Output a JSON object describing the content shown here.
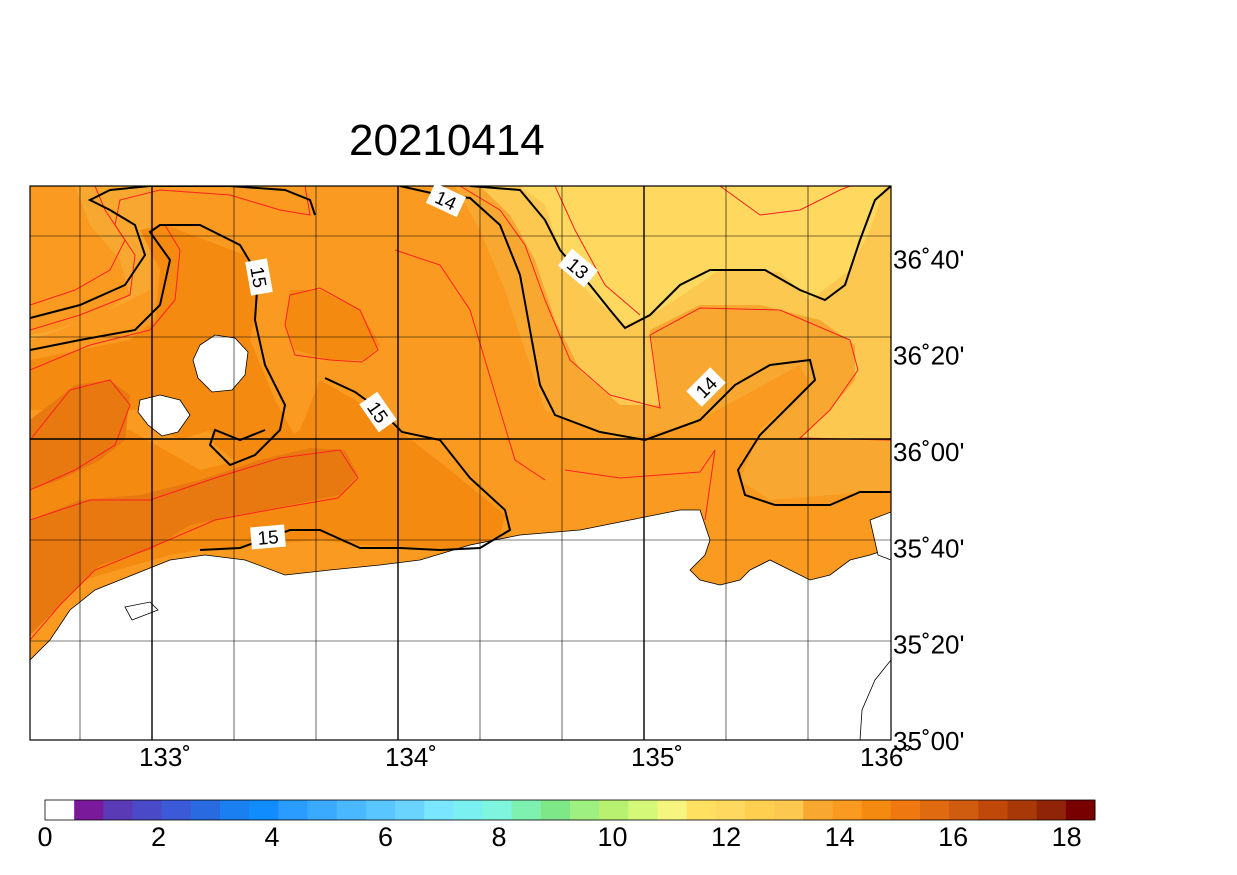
{
  "title": "20210414",
  "lon_ticks": [
    {
      "label": "133˚",
      "lon": 133
    },
    {
      "label": "134˚",
      "lon": 134
    },
    {
      "label": "135˚",
      "lon": 135
    },
    {
      "label": "136˚",
      "lon": 136
    }
  ],
  "lat_ticks": [
    {
      "label": "36˚40'",
      "lat": 36.6667
    },
    {
      "label": "36˚20'",
      "lat": 36.3333
    },
    {
      "label": "36˚00'",
      "lat": 36.0
    },
    {
      "label": "35˚40'",
      "lat": 35.6667
    },
    {
      "label": "35˚20'",
      "lat": 35.3333
    },
    {
      "label": "35˚00'",
      "lat": 35.0
    }
  ],
  "map_extent": {
    "lon": [
      132.5,
      136.0
    ],
    "lat": [
      35.0,
      36.9167
    ]
  },
  "contour_labels": [
    "14",
    "13",
    "15",
    "15",
    "14",
    "15"
  ],
  "colorbar": {
    "min": 0,
    "max": 18.5,
    "tick_labels": [
      "0",
      "2",
      "4",
      "6",
      "8",
      "10",
      "12",
      "14",
      "16",
      "18"
    ],
    "tick_values": [
      0,
      2,
      4,
      6,
      8,
      10,
      12,
      14,
      16,
      18
    ],
    "colors": [
      "#ffffff",
      "#7a1a9a",
      "#5a3bb5",
      "#4a4ac8",
      "#3a5ad8",
      "#2a6ae0",
      "#1a7ff0",
      "#108cff",
      "#2a9cff",
      "#3aaaff",
      "#4ab8ff",
      "#5ac6ff",
      "#6ad4ff",
      "#7ae6ff",
      "#7af0f0",
      "#7ef5dc",
      "#7ef0b0",
      "#7ee888",
      "#9ef080",
      "#b8f070",
      "#d6f878",
      "#f5f580",
      "#ffe060",
      "#ffd860",
      "#ffd050",
      "#fdc850",
      "#f8a830",
      "#fb9a20",
      "#f58a10",
      "#f07810",
      "#e06a10",
      "#d05c10",
      "#c04808",
      "#a83808",
      "#902408",
      "#780000"
    ]
  },
  "field_colors": {
    "lt13": "#ffd860",
    "13_135": "#fdc850",
    "135_14": "#f8a830",
    "14_145": "#fb9a20",
    "145_15": "#f5931f",
    "15_155": "#f58a10",
    "gt155": "#e87810",
    "land": "#ffffff"
  }
}
